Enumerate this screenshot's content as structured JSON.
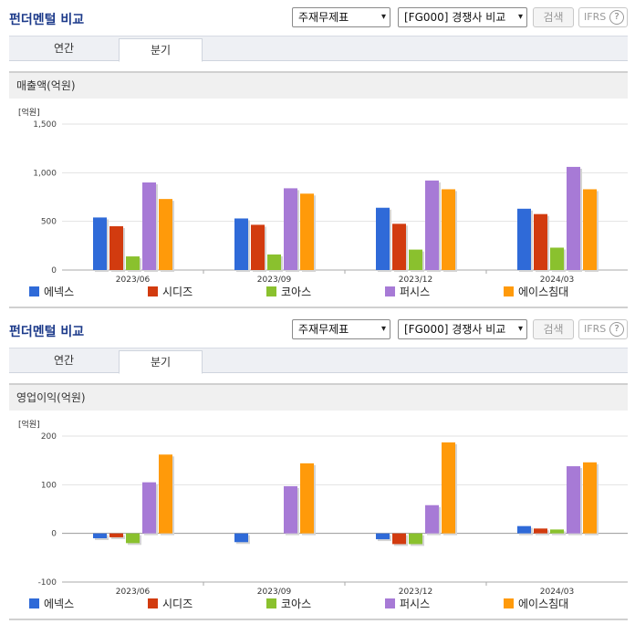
{
  "colors": {
    "accent": "#1c3a8a",
    "series": [
      "#2f6ad8",
      "#d23b0f",
      "#8ac12e",
      "#a77ad6",
      "#ff9a0a"
    ]
  },
  "sections": [
    {
      "title": "펀더멘털 비교",
      "select1": "주재무제표",
      "select2": "[FG000] 경쟁사 비교",
      "search_label": "검색",
      "ifrs_label": "IFRS",
      "help_icon": "?",
      "tabs": [
        {
          "label": "연간"
        },
        {
          "label": "분기"
        }
      ],
      "active_tab": 1,
      "subtitle": "매출액(억원)",
      "unit": "[억원]",
      "legend": [
        "에넥스",
        "시디즈",
        "코아스",
        "퍼시스",
        "에이스침대"
      ]
    },
    {
      "title": "펀더멘털 비교",
      "select1": "주재무제표",
      "select2": "[FG000] 경쟁사 비교",
      "search_label": "검색",
      "ifrs_label": "IFRS",
      "help_icon": "?",
      "tabs": [
        {
          "label": "연간"
        },
        {
          "label": "분기"
        }
      ],
      "active_tab": 1,
      "subtitle": "영업이익(억원)",
      "unit": "[억원]",
      "legend": [
        "에넥스",
        "시디즈",
        "코아스",
        "퍼시스",
        "에이스침대"
      ]
    }
  ],
  "chart_data": [
    {
      "type": "bar",
      "title": "매출액(억원)",
      "ylabel": "[억원]",
      "categories": [
        "2023/06",
        "2023/09",
        "2023/12",
        "2024/03"
      ],
      "ylim": [
        0,
        1500
      ],
      "yticks": [
        0,
        500,
        1000,
        1500
      ],
      "ytick_labels": [
        "0",
        "500",
        "1,000",
        "1,500"
      ],
      "grid": true,
      "legend": "bottom",
      "series": [
        {
          "name": "에넥스",
          "values": [
            540,
            530,
            640,
            630
          ]
        },
        {
          "name": "시디즈",
          "values": [
            450,
            465,
            475,
            575
          ]
        },
        {
          "name": "코아스",
          "values": [
            140,
            160,
            210,
            230
          ]
        },
        {
          "name": "퍼시스",
          "values": [
            900,
            840,
            920,
            1060
          ]
        },
        {
          "name": "에이스침대",
          "values": [
            730,
            785,
            830,
            830
          ]
        }
      ]
    },
    {
      "type": "bar",
      "title": "영업이익(억원)",
      "ylabel": "[억원]",
      "categories": [
        "2023/06",
        "2023/09",
        "2023/12",
        "2024/03"
      ],
      "ylim": [
        -100,
        200
      ],
      "yticks": [
        -100,
        0,
        100,
        200
      ],
      "ytick_labels": [
        "-100",
        "0",
        "100",
        "200"
      ],
      "grid": true,
      "legend": "bottom",
      "series": [
        {
          "name": "에넥스",
          "values": [
            -10,
            -18,
            -12,
            15
          ]
        },
        {
          "name": "시디즈",
          "values": [
            -8,
            0,
            -22,
            10
          ]
        },
        {
          "name": "코아스",
          "values": [
            -20,
            0,
            -22,
            8
          ]
        },
        {
          "name": "퍼시스",
          "values": [
            105,
            97,
            58,
            138
          ]
        },
        {
          "name": "에이스침대",
          "values": [
            162,
            144,
            187,
            146
          ]
        }
      ]
    }
  ]
}
